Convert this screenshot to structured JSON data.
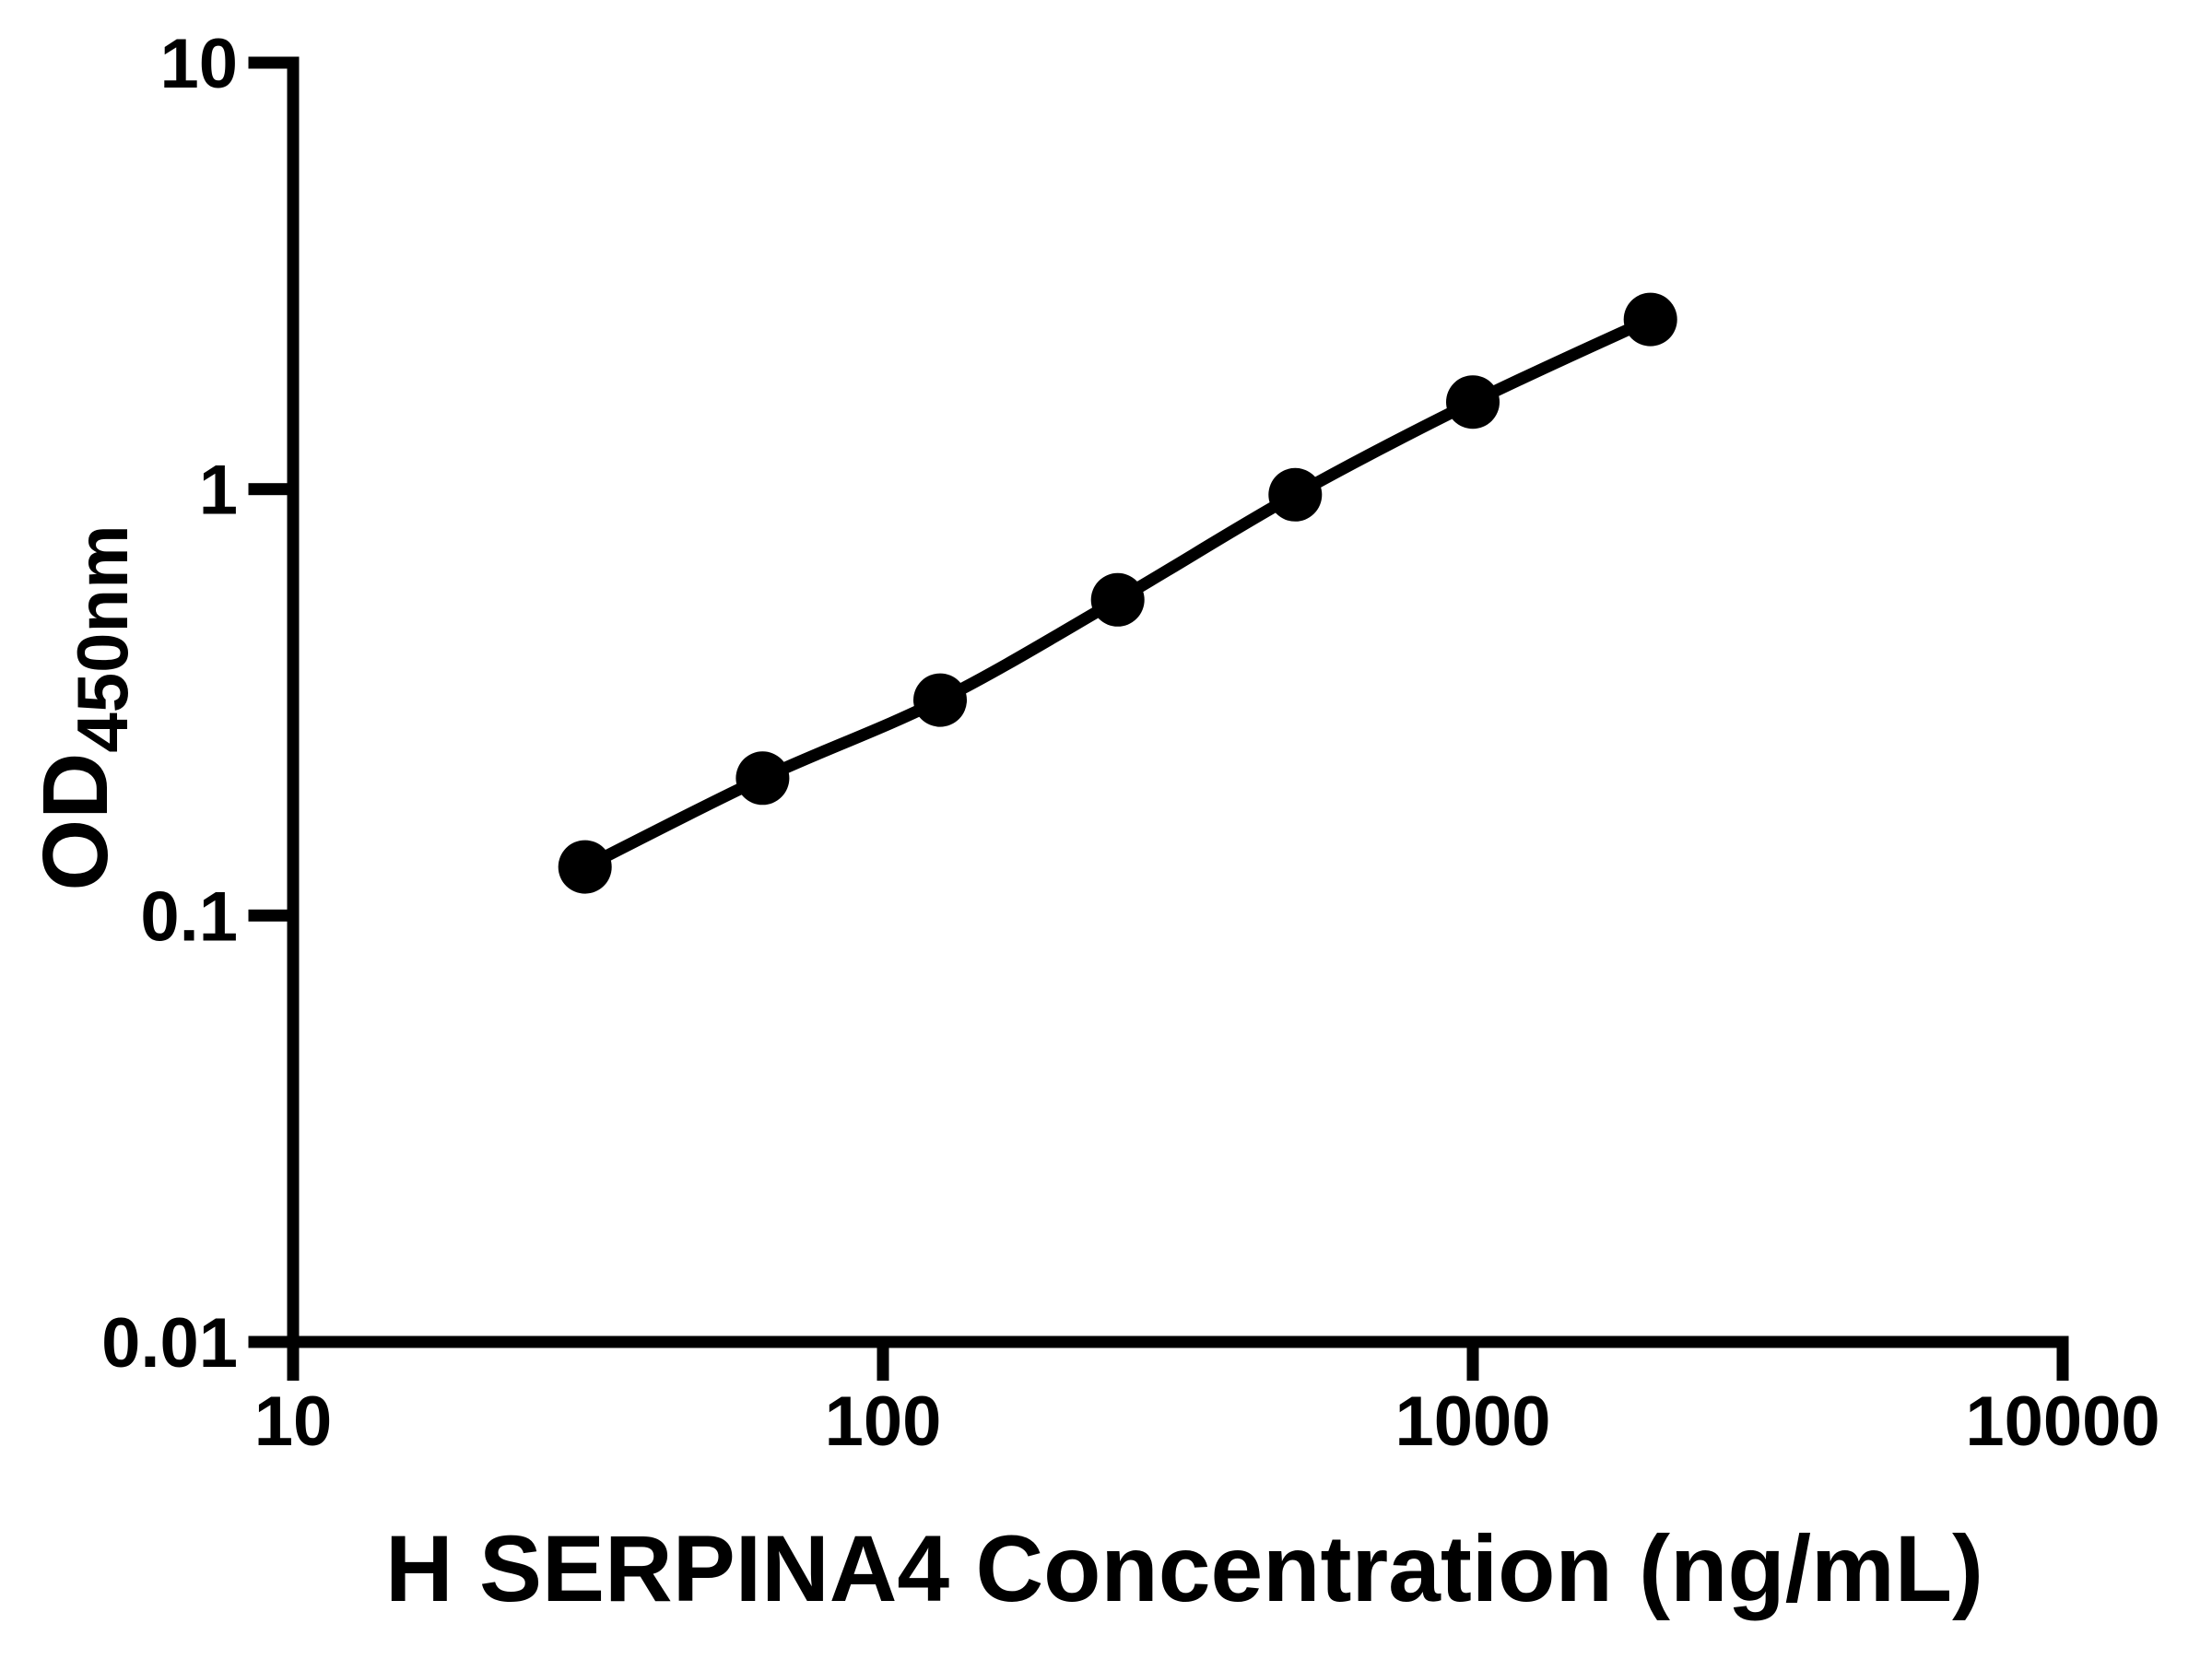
{
  "figure": {
    "background": "#ffffff",
    "foreground": "#000000"
  },
  "chart_data": {
    "type": "line",
    "title": "",
    "xlabel": "H SERPINA4 Concentration (ng/mL)",
    "ylabel_main": "OD",
    "ylabel_sub": "450nm",
    "x_scale": "log",
    "y_scale": "log",
    "xlim": [
      10,
      10000
    ],
    "ylim": [
      0.01,
      10
    ],
    "x_tick_labels": [
      "10",
      "100",
      "1000",
      "10000"
    ],
    "y_tick_labels": [
      "0.01",
      "0.1",
      "1",
      "10"
    ],
    "grid": false,
    "legend": false,
    "series": [
      {
        "marker": "circle",
        "line": "smooth",
        "color": "#000000",
        "x": [
          31.25,
          62.5,
          125,
          250,
          500,
          1000,
          2000
        ],
        "y": [
          0.13,
          0.21,
          0.32,
          0.55,
          0.97,
          1.6,
          2.5
        ]
      }
    ]
  }
}
